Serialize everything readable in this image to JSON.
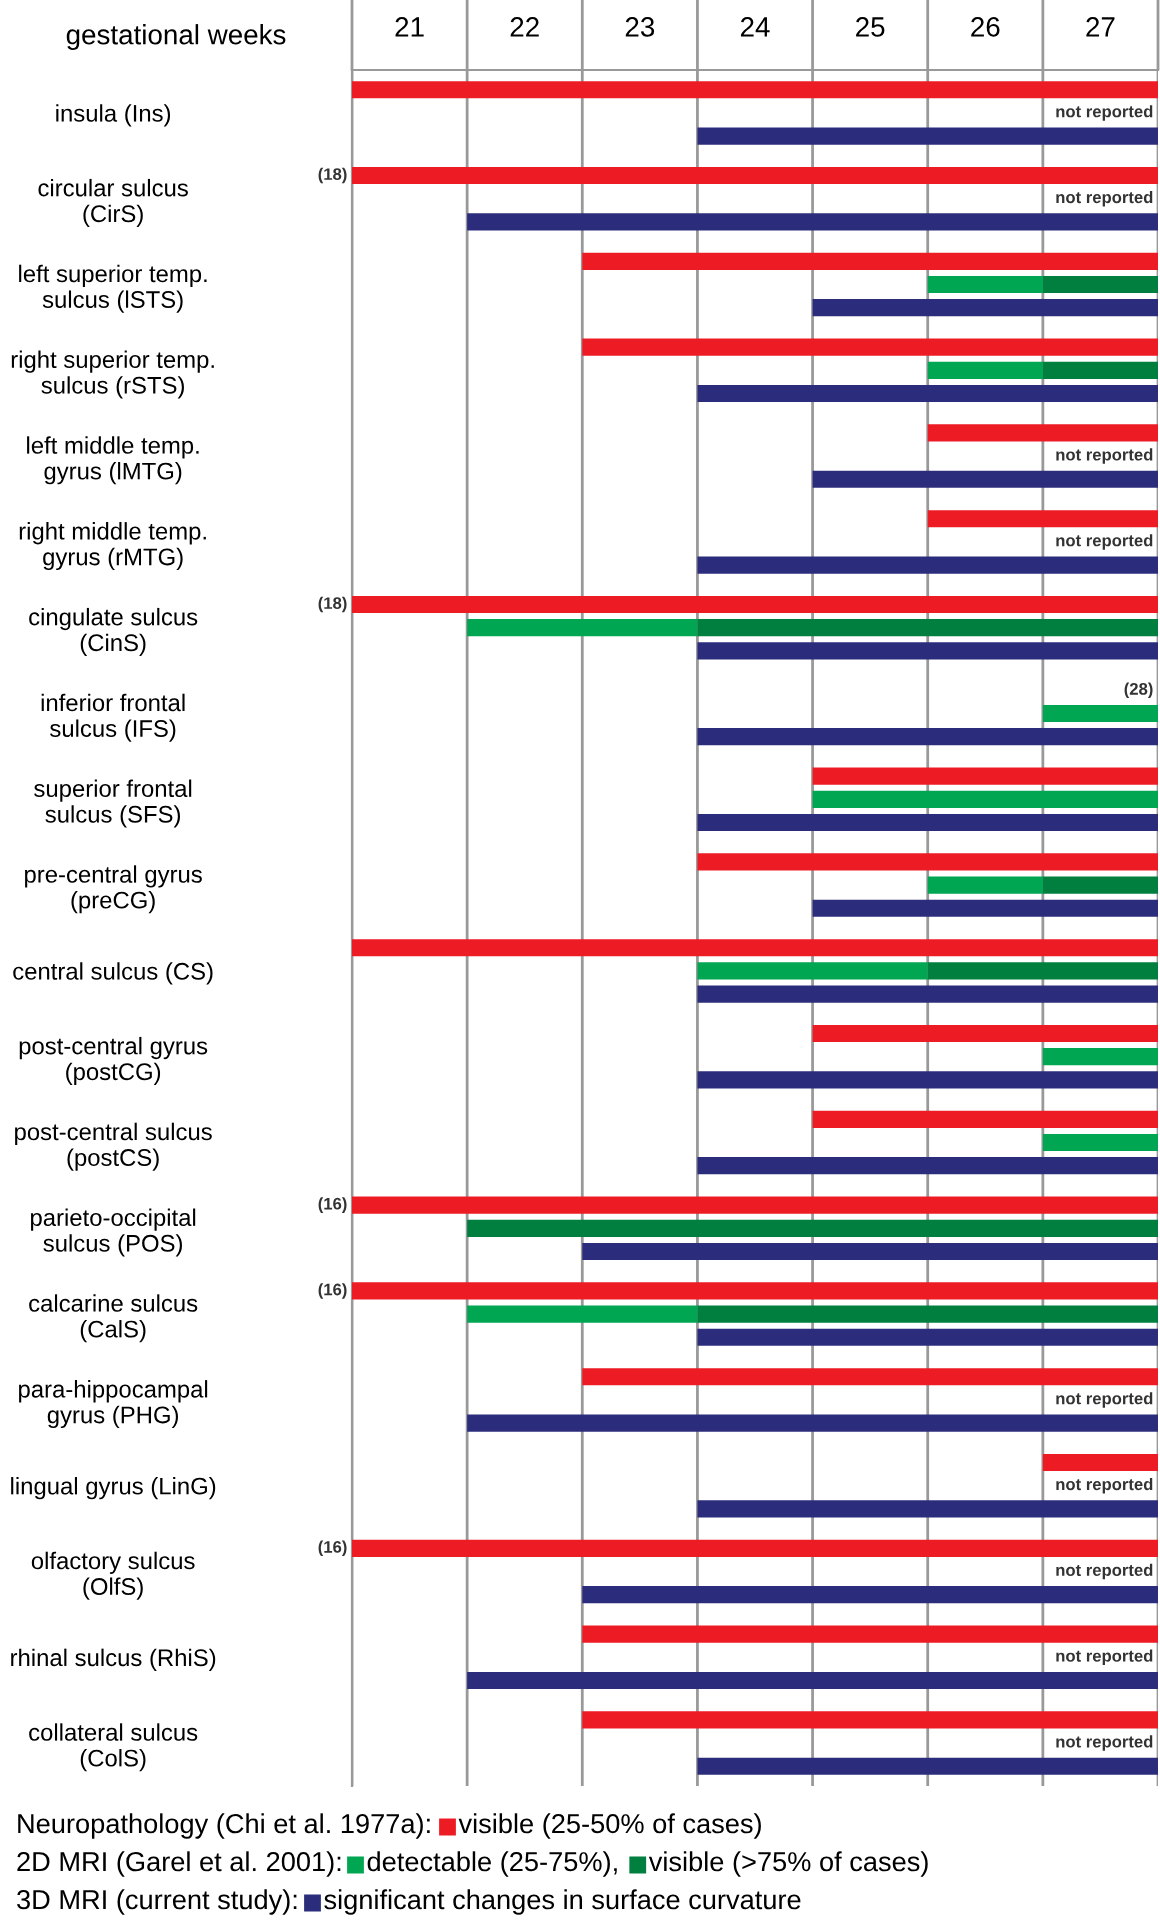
{
  "chart_data": {
    "type": "bar",
    "orientation": "horizontal",
    "xlabel": "gestational weeks",
    "categories": [
      "insula (Ins)",
      "circular sulcus\n(CirS)",
      "left superior temp.\nsulcus (lSTS)",
      "right superior temp.\nsulcus (rSTS)",
      "left middle temp.\ngyrus (lMTG)",
      "right middle temp.\ngyrus (rMTG)",
      "cingulate sulcus\n(CinS)",
      "inferior frontal\nsulcus (IFS)",
      "superior frontal\nsulcus (SFS)",
      "pre-central gyrus\n(preCG)",
      "central sulcus (CS)",
      "post-central gyrus\n(postCG)",
      "post-central sulcus\n(postCS)",
      "parieto-occipital\nsulcus (POS)",
      "calcarine sulcus\n(CalS)",
      "para-hippocampal\ngyrus (PHG)",
      "lingual gyrus (LinG)",
      "olfactory sulcus\n(OlfS)",
      "rhinal sulcus (RhiS)",
      "collateral sulcus\n(ColS)"
    ],
    "series": [
      {
        "name": "visible (25-50% of cases)",
        "color": "#ed1c24",
        "base": [
          20.5,
          20.5,
          22.5,
          22.5,
          25.5,
          25.5,
          20.5,
          null,
          24.5,
          23.5,
          20.5,
          24.5,
          24.5,
          20.5,
          20.5,
          22.5,
          26.5,
          20.5,
          22.5,
          22.5
        ],
        "values": [
          7,
          7,
          5,
          5,
          2,
          2,
          7,
          null,
          3,
          4,
          7,
          3,
          3,
          7,
          7,
          5,
          1,
          7,
          5,
          5
        ]
      },
      {
        "name": "detectable (25-75%),",
        "color": "#00a651",
        "base": [
          null,
          null,
          25.5,
          25.5,
          null,
          null,
          21.5,
          26.5,
          24.5,
          25.5,
          23.5,
          26.5,
          26.5,
          null,
          21.5,
          null,
          null,
          null,
          null,
          null
        ],
        "values": [
          null,
          null,
          1,
          1,
          null,
          null,
          2,
          1,
          3,
          1,
          2,
          1,
          1,
          null,
          2,
          null,
          null,
          null,
          null,
          null
        ]
      },
      {
        "name": "visible (>75% of cases)",
        "color": "#007f3f",
        "base": [
          null,
          null,
          26.5,
          26.5,
          null,
          null,
          23.5,
          null,
          null,
          26.5,
          25.5,
          null,
          null,
          21.5,
          23.5,
          null,
          null,
          null,
          null,
          null
        ],
        "values": [
          null,
          null,
          1,
          1,
          null,
          null,
          4,
          null,
          null,
          1,
          2,
          null,
          null,
          6,
          4,
          null,
          null,
          null,
          null,
          null
        ]
      },
      {
        "name": "significant changes in surface curvature",
        "color": "#2b2d7c",
        "base": [
          23.5,
          21.5,
          24.5,
          23.5,
          24.5,
          23.5,
          23.5,
          23.5,
          23.5,
          24.5,
          23.5,
          23.5,
          23.5,
          22.5,
          23.5,
          21.5,
          23.5,
          22.5,
          21.5,
          23.5
        ],
        "values": [
          4,
          6,
          3,
          4,
          3,
          4,
          4,
          4,
          4,
          3,
          4,
          4,
          4,
          5,
          4,
          6,
          4,
          5,
          6,
          4
        ]
      }
    ],
    "xlim": [
      20.5,
      27.5
    ],
    "xticks": [
      {
        "value": 20.5,
        "label": null
      },
      21,
      {
        "value": 21.5,
        "label": null
      },
      22,
      {
        "value": 22.5,
        "label": null
      },
      23,
      {
        "value": 23.5,
        "label": null
      },
      24,
      {
        "value": 24.5,
        "label": null
      },
      25,
      {
        "value": 25.5,
        "label": null
      },
      26,
      {
        "value": 26.5,
        "label": null
      },
      27,
      {
        "value": 27.5,
        "label": null
      }
    ],
    "grid": "x",
    "legend": "bottom",
    "annotations": [
      "Neuropathology (Chi et al. 1977a):",
      "2D MRI (Garel et al. 2001):",
      "3D MRI (current study):",
      "not reported",
      "not reported",
      "not reported",
      "not reported",
      "not reported",
      "not reported",
      "not reported",
      "not reported",
      "not reported",
      "(28)",
      "(18)",
      "(18)",
      "(16)",
      "(16)",
      "(16)"
    ]
  }
}
